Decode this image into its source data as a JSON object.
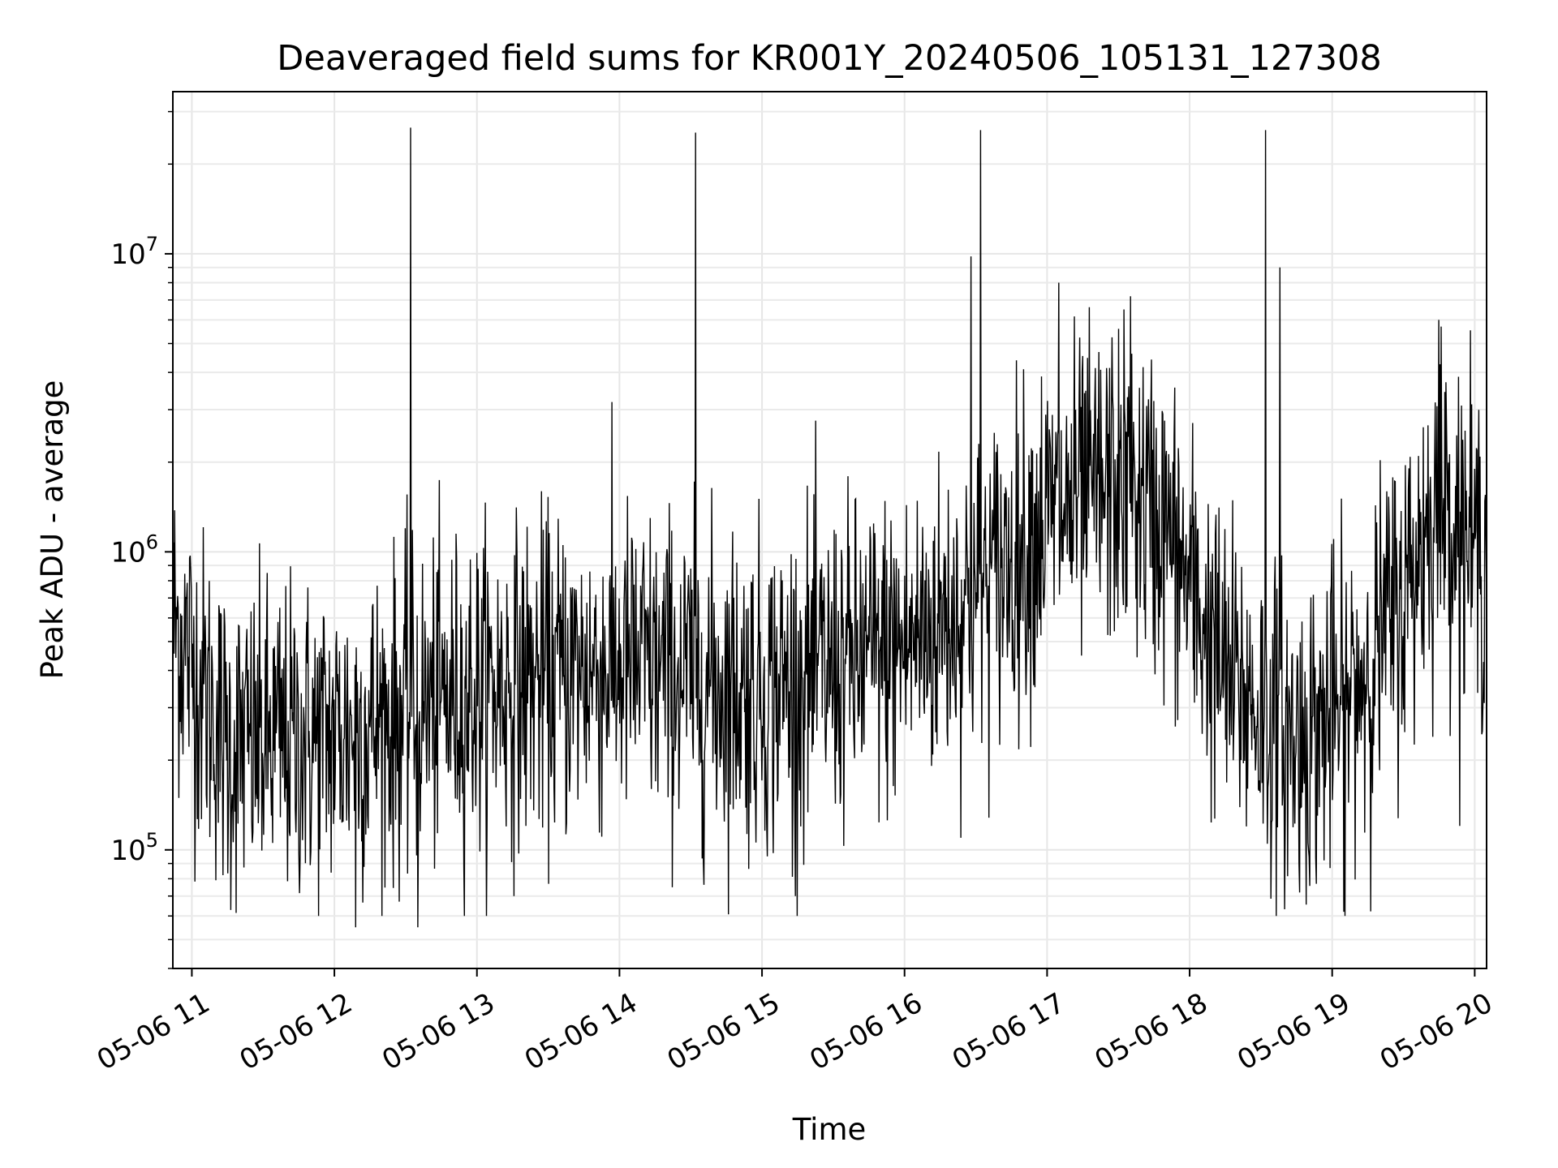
{
  "chart_data": {
    "type": "line",
    "title": "Deaveraged field sums for KR001Y_20240506_105131_127308",
    "xlabel": "Time",
    "ylabel": "Peak ADU - average",
    "y_scale": "log",
    "xlim": [
      "2024-05-06 10:52",
      "2024-05-06 20:05"
    ],
    "ylim": [
      40000,
      35000000
    ],
    "grid": true,
    "x_tick_labels": [
      "05-06 11",
      "05-06 12",
      "05-06 13",
      "05-06 14",
      "05-06 15",
      "05-06 16",
      "05-06 17",
      "05-06 18",
      "05-06 19",
      "05-06 20"
    ],
    "y_tick_labels": [
      {
        "value": 100000,
        "base": "10",
        "exp": "5"
      },
      {
        "value": 1000000,
        "base": "10",
        "exp": "6"
      },
      {
        "value": 10000000,
        "base": "10",
        "exp": "7"
      }
    ],
    "series": [
      {
        "color": "#000000",
        "baseline": [
          [
            "2024-05-06 10:52",
            600000
          ],
          [
            "2024-05-06 11:15",
            220000
          ],
          [
            "2024-05-06 12:00",
            240000
          ],
          [
            "2024-05-06 13:00",
            340000
          ],
          [
            "2024-05-06 14:00",
            420000
          ],
          [
            "2024-05-06 15:00",
            340000
          ],
          [
            "2024-05-06 16:00",
            480000
          ],
          [
            "2024-05-06 16:30",
            700000
          ],
          [
            "2024-05-06 17:00",
            1300000
          ],
          [
            "2024-05-06 17:30",
            1700000
          ],
          [
            "2024-05-06 17:50",
            1200000
          ],
          [
            "2024-05-06 18:15",
            380000
          ],
          [
            "2024-05-06 18:45",
            230000
          ],
          [
            "2024-05-06 19:05",
            300000
          ],
          [
            "2024-05-06 19:30",
            700000
          ],
          [
            "2024-05-06 19:45",
            1600000
          ],
          [
            "2024-05-06 20:05",
            900000
          ]
        ],
        "spikes": [
          [
            "2024-05-06 12:32",
            26500000
          ],
          [
            "2024-05-06 14:32",
            25500000
          ],
          [
            "2024-05-06 16:32",
            26000000
          ],
          [
            "2024-05-06 18:32",
            26000000
          ],
          [
            "2024-05-06 16:28",
            9800000
          ],
          [
            "2024-05-06 18:38",
            9000000
          ],
          [
            "2024-05-06 12:35",
            55000
          ],
          [
            "2024-05-06 12:09",
            55000
          ],
          [
            "2024-05-06 15:14",
            70000
          ],
          [
            "2024-05-06 19:05",
            62000
          ],
          [
            "2024-05-06 17:05",
            8000000
          ],
          [
            "2024-05-06 17:35",
            7200000
          ],
          [
            "2024-05-06 19:45",
            6000000
          ]
        ]
      }
    ]
  }
}
